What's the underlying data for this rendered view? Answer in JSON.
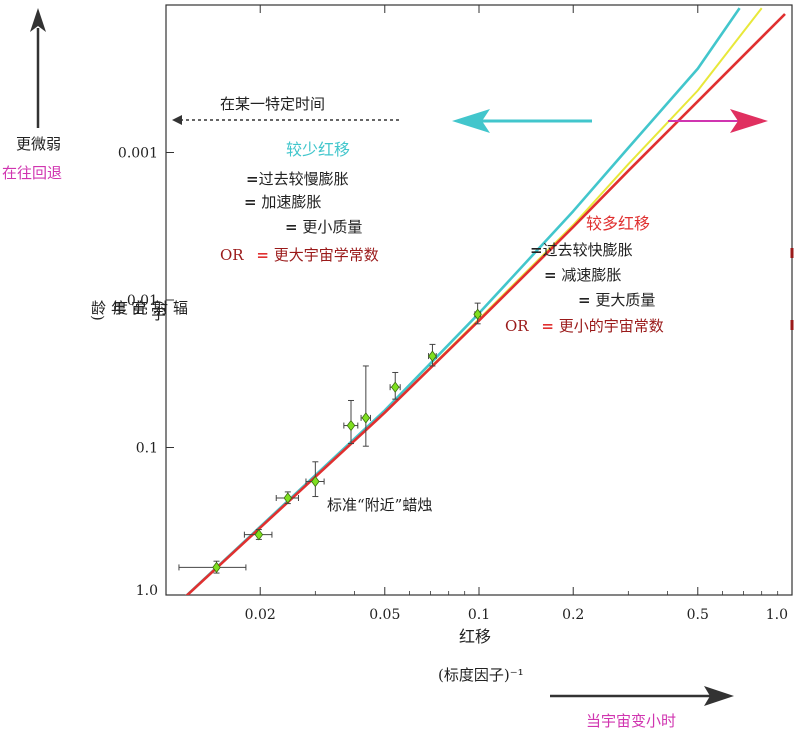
{
  "chart_data": {
    "type": "scatter",
    "title": "",
    "xlabel": "红移",
    "xlabel_sub": "(标度因子)⁻¹",
    "ylabel": "辐射亮度",
    "ylabel_sub": "(宇宙年龄)",
    "x_scale": "log",
    "y_scale": "log",
    "y_inverted": true,
    "xlim": [
      0.01,
      1.0
    ],
    "ylim": [
      1.0,
      0.0001
    ],
    "x_ticks": [
      {
        "value": 0.02,
        "label": "0.02"
      },
      {
        "value": 0.05,
        "label": "0.05"
      },
      {
        "value": 0.1,
        "label": "0.1"
      },
      {
        "value": 0.2,
        "label": "0.2"
      },
      {
        "value": 0.5,
        "label": "0.5"
      },
      {
        "value": 1.0,
        "label": "1.0"
      }
    ],
    "y_ticks": [
      {
        "value": 0.001,
        "label": "0.001"
      },
      {
        "value": 0.01,
        "label": "0.01"
      },
      {
        "value": 0.1,
        "label": "0.1"
      },
      {
        "value": 1.0,
        "label": "1.0"
      }
    ],
    "points": [
      {
        "x": 0.0145,
        "y": 0.65,
        "xerr": 0.0035,
        "yerr": 0.06
      },
      {
        "x": 0.0198,
        "y": 0.39,
        "xerr": 0.002,
        "yerr": 0.03
      },
      {
        "x": 0.0245,
        "y": 0.22,
        "xerr": 0.002,
        "yerr": 0.02
      },
      {
        "x": 0.03,
        "y": 0.17,
        "xerr": 0.002,
        "yerr": 0.045
      },
      {
        "x": 0.039,
        "y": 0.071,
        "xerr": 0.002,
        "yerr": 0.023
      },
      {
        "x": 0.0435,
        "y": 0.063,
        "xerr": 0.0015,
        "yerr": 0.035
      },
      {
        "x": 0.054,
        "y": 0.039,
        "xerr": 0.002,
        "yerr": 0.008
      },
      {
        "x": 0.071,
        "y": 0.024,
        "xerr": 0.002,
        "yerr": 0.004
      },
      {
        "x": 0.099,
        "y": 0.0125,
        "xerr": 0.002,
        "yerr": 0.002
      }
    ],
    "series": [
      {
        "color": "#42c6cc",
        "x": [
          0.01,
          0.05,
          0.1,
          0.2,
          0.3,
          0.5,
          0.68
        ],
        "y": [
          1.36,
          0.056,
          0.0123,
          0.0025,
          0.00093,
          0.00027,
          0.000105
        ]
      },
      {
        "color": "#e8e83a",
        "x": [
          0.01,
          0.05,
          0.1,
          0.2,
          0.3,
          0.5,
          0.8
        ],
        "y": [
          1.36,
          0.058,
          0.0135,
          0.0031,
          0.0012,
          0.00038,
          0.000105
        ]
      },
      {
        "color": "#e03030",
        "x": [
          0.01,
          0.05,
          0.1,
          0.2,
          0.3,
          0.5,
          0.95
        ],
        "y": [
          1.36,
          0.058,
          0.0138,
          0.0032,
          0.00133,
          0.00045,
          0.000115
        ]
      }
    ],
    "colors": {
      "teal": "#42c6cc",
      "red": "#e03030",
      "dark_red": "#9a1a1a",
      "magenta": "#d035b0",
      "marker_fill": "#7fe020",
      "yellow": "#e8e83a"
    }
  },
  "annotations": {
    "fainter": "更微弱",
    "further_back": "在往回退",
    "at_certain_time": "在某一特定时间",
    "less_redshift": {
      "title": "较少红移",
      "line1_eq": "=",
      "line1": "过去较慢膨胀",
      "line2_eq": "=",
      "line2": "加速膨胀",
      "line3_eq": "=",
      "line3": "更小质量",
      "or": "OR",
      "line4_eq": "=",
      "line4": "更大宇宙学常数"
    },
    "more_redshift": {
      "title": "较多红移",
      "line1_eq": "=",
      "line1": "过去较快膨胀",
      "line2_eq": "=",
      "line2": "减速膨胀",
      "line3_eq": "=",
      "line3": "更大质量",
      "or": "OR",
      "line4_eq": "=",
      "line4": "更小的宇宙常数"
    },
    "standard_candles": "标准“附近”蜡烛",
    "when_smaller": "当宇宙变小时"
  }
}
